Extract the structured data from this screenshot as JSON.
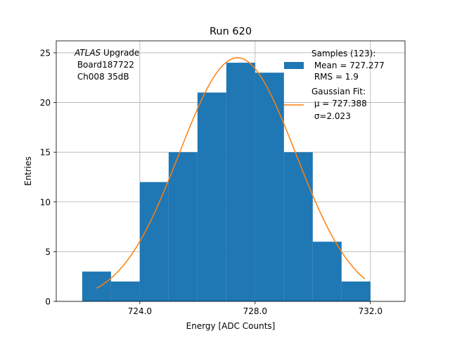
{
  "chart_data": {
    "type": "histogram",
    "title": "Run 620",
    "xlabel": "Energy [ADC Counts]",
    "ylabel": "Entries",
    "xlim": [
      721.1,
      733.2
    ],
    "ylim": [
      0,
      26.2
    ],
    "x_ticks": [
      724.0,
      728.0,
      732.0
    ],
    "x_tick_labels": [
      "724.0",
      "728.0",
      "732.0"
    ],
    "y_ticks": [
      0,
      5,
      10,
      15,
      20,
      25
    ],
    "y_tick_labels": [
      "0",
      "5",
      "10",
      "15",
      "20",
      "25"
    ],
    "grid": true,
    "bin_edges": [
      722,
      723,
      724,
      725,
      726,
      727,
      728,
      729,
      730,
      731,
      732
    ],
    "counts": [
      3,
      2,
      12,
      15,
      21,
      24,
      23,
      15,
      6,
      2
    ],
    "fit": {
      "type": "gaussian",
      "mu": 727.388,
      "sigma": 2.023,
      "amplitude": 24.5,
      "x_start": 722.5,
      "x_end": 731.8
    },
    "annotation_lines": [
      "ATLAS Upgrade",
      " Board187722",
      " Ch008 35dB"
    ],
    "annotation_italic_word": "ATLAS",
    "annotation_rest": " Upgrade",
    "legend": {
      "position": "upper right",
      "entries": [
        {
          "kind": "patch",
          "label_lines": [
            "Samples (123):",
            " Mean = 727.277",
            " RMS = 1.9"
          ]
        },
        {
          "kind": "line",
          "label_lines": [
            "Gaussian Fit:",
            " μ = 727.388",
            " σ=2.023"
          ]
        }
      ]
    },
    "colors": {
      "bars": "#1f77b4",
      "fit": "#ff7f0e",
      "grid": "#b0b0b0"
    }
  }
}
